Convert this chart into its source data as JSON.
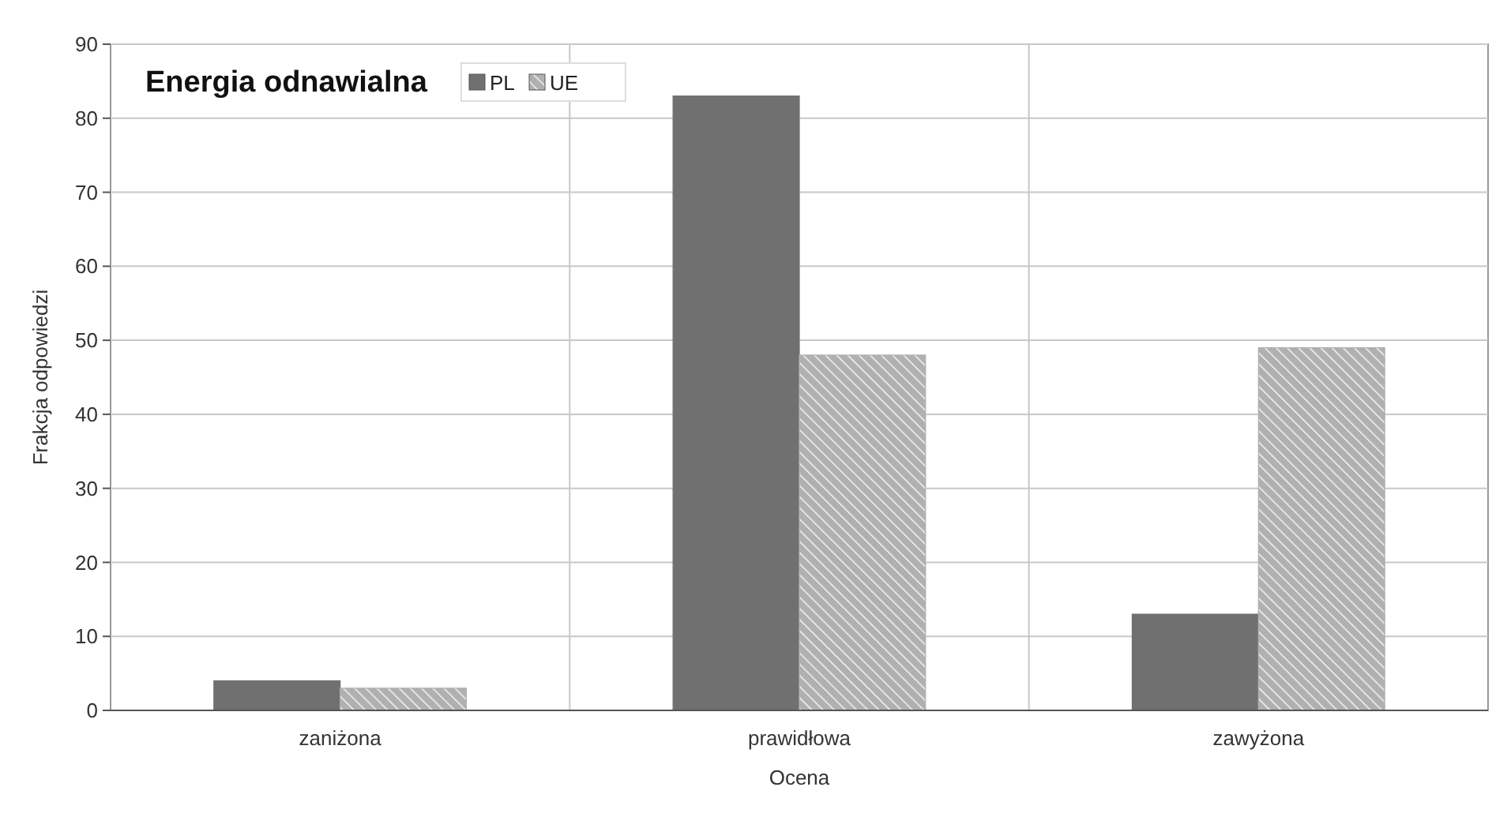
{
  "chart_data": {
    "type": "bar",
    "title": "Energia odnawialna",
    "xlabel": "Ocena",
    "ylabel": "Frakcja odpowiedzi",
    "categories": [
      "zaniżona",
      "prawidłowa",
      "zawyżona"
    ],
    "series": [
      {
        "name": "PL",
        "color": "#707070",
        "values": [
          4,
          83,
          13
        ]
      },
      {
        "name": "UE",
        "color": "#b0b0b0",
        "values": [
          3,
          48,
          49
        ]
      }
    ],
    "ylim": [
      0,
      90
    ],
    "yticks": [
      0,
      10,
      20,
      30,
      40,
      50,
      60,
      70,
      80,
      90
    ],
    "grid": true,
    "legend": "top left"
  }
}
